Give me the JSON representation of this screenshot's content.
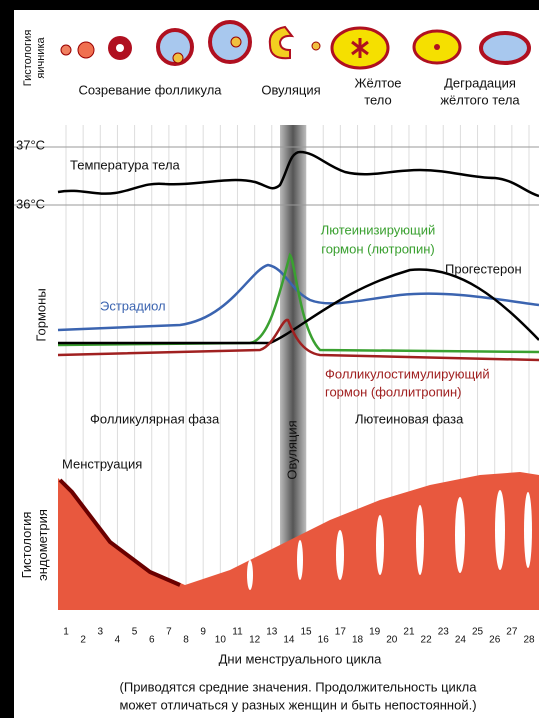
{
  "ovary_histology": {
    "label_lines": [
      "Гистология",
      "яичника"
    ],
    "stages": [
      {
        "lines": [
          "Созревание фолликула"
        ]
      },
      {
        "lines": [
          "Овуляция"
        ]
      },
      {
        "lines": [
          "Жёлтое",
          "тело"
        ]
      },
      {
        "lines": [
          "Деградация",
          "жёлтого тела"
        ]
      }
    ]
  },
  "temperature": {
    "label": "Температура тела",
    "ticks": [
      "37°C",
      "36°C"
    ]
  },
  "hormones": {
    "label": "Гормоны",
    "estradiol": "Эстрадиол",
    "lh": [
      "Лютеинизирующий",
      "гормон (лютропин)"
    ],
    "progesterone": "Прогестерон",
    "fsh": [
      "Фолликулостимулирующий",
      "гормон (фоллитропин)"
    ]
  },
  "phases": {
    "follicular": "Фолликулярная фаза",
    "ovulation": "Овуляция",
    "luteal": "Лютеиновая фаза"
  },
  "endometrium": {
    "label_lines": [
      "Гистология",
      "эндометрия"
    ],
    "menstruation": "Менструация"
  },
  "days": {
    "values": [
      1,
      2,
      3,
      4,
      5,
      6,
      7,
      8,
      9,
      10,
      11,
      12,
      13,
      14,
      15,
      16,
      17,
      18,
      19,
      20,
      21,
      22,
      23,
      24,
      25,
      26,
      27,
      28
    ],
    "title": "Дни менструального цикла"
  },
  "note": [
    "(Приводятся средние значения. Продолжительность цикла",
    "может отличаться у разных женщин и быть непостоянной.)"
  ]
}
